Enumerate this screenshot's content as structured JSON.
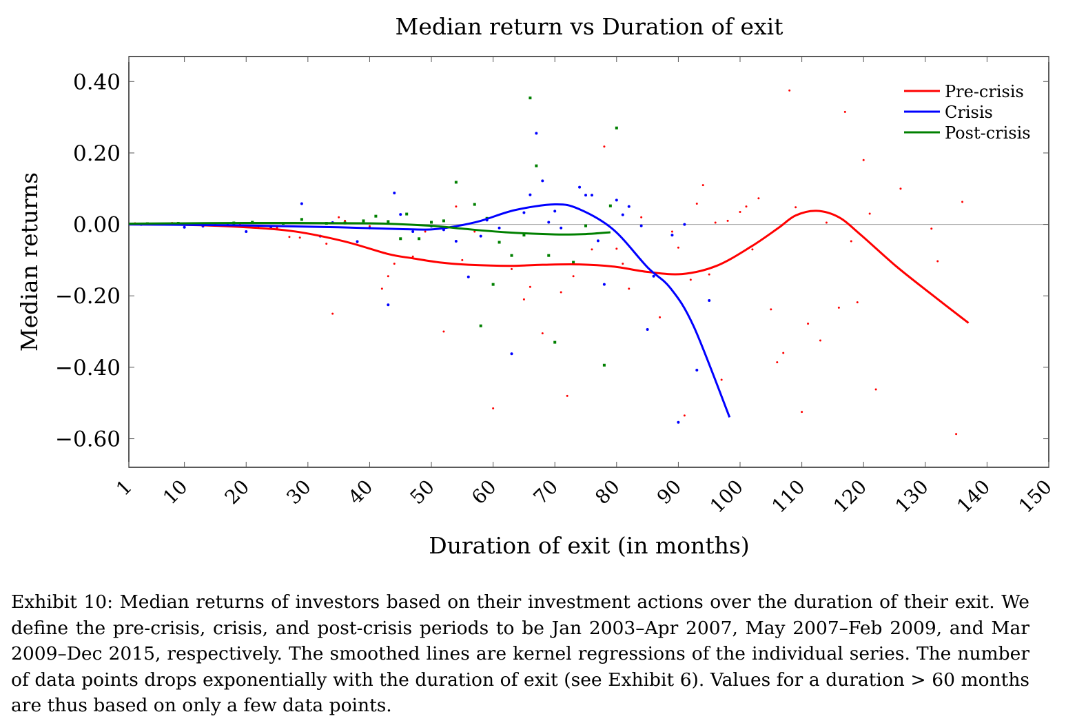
{
  "chart_data": {
    "type": "scatter",
    "title": "Median return vs Duration of exit",
    "xlabel": "Duration of exit (in months)",
    "ylabel": "Median returns",
    "xlim": [
      1,
      150
    ],
    "ylim": [
      -0.68,
      0.47
    ],
    "xticks": [
      1,
      10,
      20,
      30,
      40,
      50,
      60,
      70,
      80,
      90,
      100,
      110,
      120,
      130,
      140,
      150
    ],
    "yticks": [
      0.4,
      0.2,
      0.0,
      -0.2,
      -0.4,
      -0.6
    ],
    "ytick_labels": [
      "0.40",
      "0.20",
      "0.00",
      "−0.20",
      "−0.40",
      "−0.60"
    ],
    "grid": false,
    "legend_position": "top-right",
    "series": [
      {
        "name": "Pre-crisis",
        "color": "#ff0000",
        "points": [
          [
            2,
            0.003
          ],
          [
            5,
            0.002
          ],
          [
            8,
            0.004
          ],
          [
            12,
            0.003
          ],
          [
            15,
            0.0
          ],
          [
            19,
            0.002
          ],
          [
            22,
            -0.005
          ],
          [
            25,
            -0.01
          ],
          [
            27,
            -0.035
          ],
          [
            28.7,
            -0.037
          ],
          [
            33,
            -0.054
          ],
          [
            34,
            -0.25
          ],
          [
            35,
            0.02
          ],
          [
            36,
            0.01
          ],
          [
            38,
            -0.05
          ],
          [
            40,
            -0.005
          ],
          [
            42,
            -0.18
          ],
          [
            43,
            -0.145
          ],
          [
            44,
            -0.11
          ],
          [
            47,
            -0.09
          ],
          [
            49,
            -0.02
          ],
          [
            52,
            -0.3
          ],
          [
            54,
            0.05
          ],
          [
            55,
            -0.1
          ],
          [
            57,
            -0.02
          ],
          [
            60,
            -0.515
          ],
          [
            63,
            -0.125
          ],
          [
            65,
            -0.21
          ],
          [
            66,
            -0.175
          ],
          [
            68,
            -0.305
          ],
          [
            71,
            -0.19
          ],
          [
            72,
            -0.48
          ],
          [
            73,
            -0.145
          ],
          [
            76,
            -0.07
          ],
          [
            78,
            0.218
          ],
          [
            80,
            -0.068
          ],
          [
            81,
            -0.11
          ],
          [
            82,
            -0.18
          ],
          [
            84,
            0.02
          ],
          [
            87,
            -0.26
          ],
          [
            89,
            -0.02
          ],
          [
            90,
            -0.065
          ],
          [
            91,
            -0.535
          ],
          [
            92,
            -0.155
          ],
          [
            93,
            0.058
          ],
          [
            94,
            0.11
          ],
          [
            95,
            -0.14
          ],
          [
            96,
            0.005
          ],
          [
            97,
            -0.435
          ],
          [
            98,
            0.01
          ],
          [
            100,
            0.035
          ],
          [
            101,
            0.05
          ],
          [
            102,
            -0.07
          ],
          [
            103,
            0.073
          ],
          [
            105,
            -0.238
          ],
          [
            106,
            -0.386
          ],
          [
            107,
            -0.36
          ],
          [
            108,
            0.375
          ],
          [
            109,
            0.048
          ],
          [
            110,
            -0.525
          ],
          [
            111,
            -0.278
          ],
          [
            113,
            -0.325
          ],
          [
            114,
            0.005
          ],
          [
            116,
            -0.233
          ],
          [
            117,
            0.315
          ],
          [
            118,
            -0.047
          ],
          [
            119,
            -0.218
          ],
          [
            120,
            0.18
          ],
          [
            121,
            0.03
          ],
          [
            122,
            -0.462
          ],
          [
            126,
            0.1
          ],
          [
            131,
            -0.012
          ],
          [
            132,
            -0.103
          ],
          [
            135,
            -0.587
          ],
          [
            136,
            0.063
          ]
        ],
        "smooth": [
          [
            1,
            0
          ],
          [
            10,
            -0.001
          ],
          [
            20,
            -0.008
          ],
          [
            28,
            -0.02
          ],
          [
            36,
            -0.048
          ],
          [
            43,
            -0.083
          ],
          [
            47,
            -0.095
          ],
          [
            51.6,
            -0.107
          ],
          [
            56,
            -0.113
          ],
          [
            62.7,
            -0.116
          ],
          [
            68,
            -0.113
          ],
          [
            73.9,
            -0.112
          ],
          [
            79.5,
            -0.118
          ],
          [
            85,
            -0.133
          ],
          [
            90.6,
            -0.139
          ],
          [
            96.2,
            -0.116
          ],
          [
            101.8,
            -0.062
          ],
          [
            106.2,
            -0.01
          ],
          [
            109,
            0.025
          ],
          [
            112.4,
            0.038
          ],
          [
            116,
            0.02
          ],
          [
            119.6,
            -0.03
          ],
          [
            125.2,
            -0.116
          ],
          [
            130.8,
            -0.193
          ],
          [
            137,
            -0.276
          ]
        ]
      },
      {
        "name": "Crisis",
        "color": "#0000ff",
        "points": [
          [
            3,
            0.0
          ],
          [
            10,
            -0.008
          ],
          [
            13,
            -0.005
          ],
          [
            17,
            -0.002
          ],
          [
            20,
            -0.02
          ],
          [
            24,
            -0.01
          ],
          [
            29,
            0.058
          ],
          [
            32,
            -0.033
          ],
          [
            34,
            0.005
          ],
          [
            38,
            -0.048
          ],
          [
            40,
            -0.01
          ],
          [
            43,
            -0.225
          ],
          [
            44,
            0.088
          ],
          [
            45,
            0.028
          ],
          [
            47,
            -0.02
          ],
          [
            50,
            -0.005
          ],
          [
            52,
            -0.015
          ],
          [
            54,
            -0.047
          ],
          [
            56,
            -0.147
          ],
          [
            58,
            -0.033
          ],
          [
            59,
            0.012
          ],
          [
            61,
            -0.01
          ],
          [
            63,
            -0.362
          ],
          [
            65,
            0.033
          ],
          [
            66,
            0.083
          ],
          [
            67,
            0.255
          ],
          [
            68,
            0.122
          ],
          [
            69,
            0.006
          ],
          [
            70,
            0.037
          ],
          [
            71,
            -0.01
          ],
          [
            74,
            0.104
          ],
          [
            75,
            0.082
          ],
          [
            76,
            0.082
          ],
          [
            77,
            -0.046
          ],
          [
            78,
            -0.168
          ],
          [
            80,
            0.068
          ],
          [
            81,
            0.027
          ],
          [
            82,
            0.05
          ],
          [
            84,
            -0.004
          ],
          [
            85,
            -0.294
          ],
          [
            86,
            -0.145
          ],
          [
            89,
            -0.03
          ],
          [
            90,
            -0.554
          ],
          [
            91,
            0.0
          ],
          [
            93,
            -0.408
          ],
          [
            95,
            -0.213
          ]
        ],
        "smooth": [
          [
            1,
            0
          ],
          [
            20,
            -0.003
          ],
          [
            35,
            -0.008
          ],
          [
            45,
            -0.013
          ],
          [
            50,
            -0.014
          ],
          [
            54,
            -0.005
          ],
          [
            58,
            0.01
          ],
          [
            63.5,
            0.04
          ],
          [
            70,
            0.056
          ],
          [
            73.9,
            0.043
          ],
          [
            79.5,
            -0.015
          ],
          [
            85,
            -0.12
          ],
          [
            88.7,
            -0.178
          ],
          [
            92.5,
            -0.286
          ],
          [
            98.3,
            -0.54
          ]
        ]
      },
      {
        "name": "Post-crisis",
        "color": "#008000",
        "points": [
          [
            4,
            0.002
          ],
          [
            9,
            0.003
          ],
          [
            14,
            0.002
          ],
          [
            18,
            0.004
          ],
          [
            21,
            0.006
          ],
          [
            26,
            0.003
          ],
          [
            29,
            0.014
          ],
          [
            33,
            0.003
          ],
          [
            36,
            0.004
          ],
          [
            39,
            0.01
          ],
          [
            41,
            0.023
          ],
          [
            43,
            0.008
          ],
          [
            45,
            -0.04
          ],
          [
            46,
            0.029
          ],
          [
            48,
            -0.04
          ],
          [
            50,
            0.006
          ],
          [
            52,
            0.01
          ],
          [
            54,
            0.118
          ],
          [
            57,
            0.056
          ],
          [
            58,
            -0.284
          ],
          [
            59,
            0.017
          ],
          [
            60,
            -0.168
          ],
          [
            61,
            -0.05
          ],
          [
            63,
            -0.087
          ],
          [
            65,
            -0.03
          ],
          [
            66,
            0.354
          ],
          [
            67,
            0.164
          ],
          [
            69,
            -0.087
          ],
          [
            70,
            -0.33
          ],
          [
            73,
            -0.106
          ],
          [
            75,
            -0.004
          ],
          [
            78,
            -0.394
          ],
          [
            79,
            0.052
          ],
          [
            80,
            0.27
          ]
        ],
        "smooth": [
          [
            1,
            0.002
          ],
          [
            20,
            0.004
          ],
          [
            40,
            0.003
          ],
          [
            50,
            -0.004
          ],
          [
            55,
            -0.012
          ],
          [
            62,
            -0.022
          ],
          [
            70,
            -0.028
          ],
          [
            75,
            -0.027
          ],
          [
            79,
            -0.022
          ]
        ]
      }
    ]
  },
  "caption": "Exhibit 10: Median returns of investors based on their investment actions over the duration of their exit. We define the pre-crisis, crisis, and post-crisis periods to be Jan 2003–Apr 2007, May 2007–Feb 2009, and Mar 2009–Dec 2015, respectively. The smoothed lines are kernel regressions of the individual series. The number of data points drops exponentially with the duration of exit (see Exhibit 6). Values for a duration > 60 months are thus based on only a few data points."
}
